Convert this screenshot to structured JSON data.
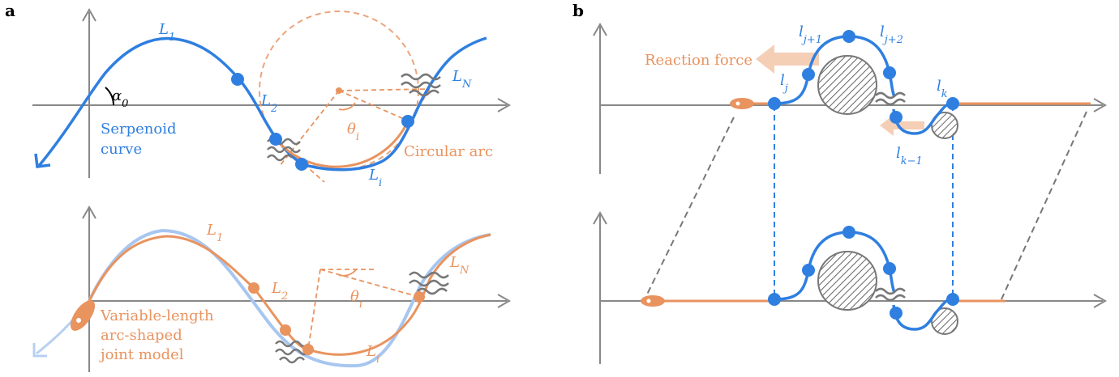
{
  "panel_a": {
    "label": "a",
    "top": {
      "L1": {
        "main": "L",
        "sub": "1"
      },
      "alpha0": {
        "main": "α",
        "sub": "0"
      },
      "curve_name": [
        "Serpenoid",
        "curve"
      ],
      "L2": {
        "main": "L",
        "sub": "2"
      },
      "theta": {
        "main": "θ",
        "sub": "i"
      },
      "arc_name": "Circular arc",
      "Li": {
        "main": "L",
        "sub": "i"
      },
      "LN": {
        "main": "L",
        "sub": "N"
      }
    },
    "bottom": {
      "L1": {
        "main": "L",
        "sub": "1"
      },
      "L2": {
        "main": "L",
        "sub": "2"
      },
      "theta": {
        "main": "θ",
        "sub": "i"
      },
      "Li": {
        "main": "L",
        "sub": "i"
      },
      "LN": {
        "main": "L",
        "sub": "N"
      },
      "model_name": [
        "Variable-length",
        "arc-shaped",
        "joint model"
      ]
    }
  },
  "panel_b": {
    "label": "b",
    "force_label": "Reaction force",
    "links": {
      "lj1": {
        "main": "l",
        "sub": "j+1"
      },
      "lj2": {
        "main": "l",
        "sub": "j+2"
      },
      "lj": {
        "main": "l",
        "sub": "j"
      },
      "lk": {
        "main": "l",
        "sub": "k"
      },
      "lk1": {
        "main": "l",
        "sub": "k−1"
      }
    }
  }
}
